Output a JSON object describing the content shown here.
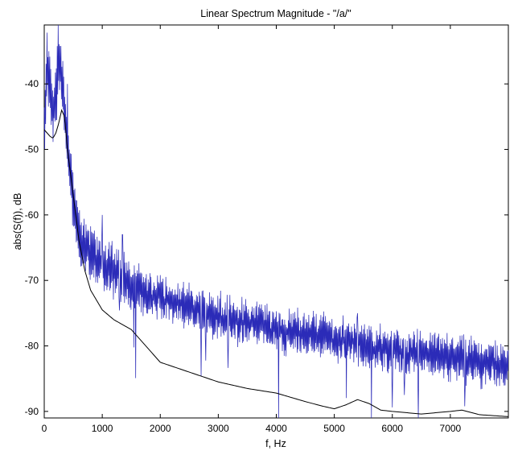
{
  "chart_data": {
    "type": "line",
    "title": "Linear Spectrum Magnitude - \"/a/\"",
    "xlabel": "f, Hz",
    "ylabel": "abs(S(f)), dB",
    "xlim": [
      0,
      8000
    ],
    "ylim": [
      -91,
      -31
    ],
    "xticks": [
      0,
      1000,
      2000,
      3000,
      4000,
      5000,
      6000,
      7000
    ],
    "yticks": [
      -90,
      -80,
      -70,
      -60,
      -50,
      -40
    ],
    "grid": false,
    "legend": "none",
    "series": [
      {
        "color": "#2b2bb8",
        "style": "noisy-spectrum",
        "x": [
          0,
          50,
          100,
          150,
          200,
          250,
          300,
          350,
          400,
          450,
          500,
          600,
          700,
          800,
          900,
          1000,
          1200,
          1400,
          1600,
          1800,
          2000,
          2500,
          3000,
          3500,
          4000,
          4500,
          5000,
          5400,
          5600,
          6000,
          6500,
          7000,
          7500,
          8000
        ],
        "values": [
          -47,
          -37,
          -41,
          -44,
          -42,
          -36,
          -38,
          -45,
          -48,
          -53,
          -58,
          -63,
          -65,
          -66,
          -67,
          -67,
          -69,
          -70,
          -71,
          -72,
          -72.5,
          -74,
          -75.5,
          -76.5,
          -77.5,
          -78,
          -79,
          -79.5,
          -80,
          -81,
          -81.5,
          -82,
          -82.5,
          -83
        ],
        "peaks": [
          {
            "x": 80,
            "y": -35
          },
          {
            "x": 240,
            "y": -31
          },
          {
            "x": 400,
            "y": -40
          },
          {
            "x": 1000,
            "y": -60
          },
          {
            "x": 1350,
            "y": -63
          },
          {
            "x": 5400,
            "y": -75
          }
        ]
      },
      {
        "color": "#000000",
        "style": "smooth-envelope",
        "x": [
          0,
          100,
          150,
          200,
          250,
          300,
          350,
          400,
          500,
          600,
          700,
          800,
          1000,
          1200,
          1500,
          1800,
          2000,
          2500,
          3000,
          3500,
          4000,
          4500,
          4800,
          5000,
          5200,
          5400,
          5600,
          5800,
          6000,
          6500,
          7000,
          7200,
          7500,
          8000
        ],
        "values": [
          -47,
          -48,
          -48.3,
          -47.5,
          -46,
          -44,
          -45,
          -50,
          -57,
          -64,
          -68.5,
          -71.5,
          -74.5,
          -76,
          -77.5,
          -80.5,
          -82.5,
          -84,
          -85.5,
          -86.5,
          -87.2,
          -88.5,
          -89.2,
          -89.6,
          -89,
          -88.2,
          -88.8,
          -89.8,
          -90,
          -90.4,
          -90,
          -89.8,
          -90.5,
          -90.8
        ]
      }
    ]
  }
}
